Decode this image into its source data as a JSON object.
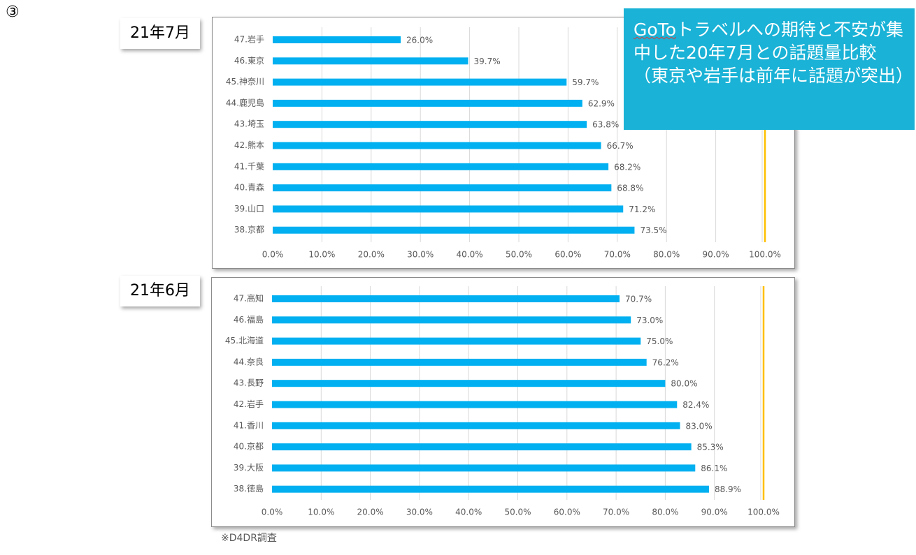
{
  "corner_mark": "③",
  "callout": {
    "prefix": "GoTo",
    "text": "トラベルへの期待と不安が集中した20年7月との話題量比較（東京や岩手は前年に話題が突出）"
  },
  "source_note": "※D4DR調査",
  "colors": {
    "bar": "#00b0f0",
    "reference_line": "#ffc000",
    "gridline": "#d9d9d9",
    "callout_bg": "#1ab2d6"
  },
  "chart_data": [
    {
      "type": "bar",
      "orientation": "horizontal",
      "panel_label": "21年7月",
      "categories": [
        "47.岩手",
        "46.東京",
        "45.神奈川",
        "44.鹿児島",
        "43.埼玉",
        "42.熊本",
        "41.千葉",
        "40.青森",
        "39.山口",
        "38.京都"
      ],
      "values": [
        26.0,
        39.7,
        59.7,
        62.9,
        63.8,
        66.7,
        68.2,
        68.8,
        71.2,
        73.5
      ],
      "value_labels": [
        "26.0%",
        "39.7%",
        "59.7%",
        "62.9%",
        "63.8%",
        "66.7%",
        "68.2%",
        "68.8%",
        "71.2%",
        "73.5%"
      ],
      "xlim": [
        0,
        100
      ],
      "x_ticks": [
        "0.0%",
        "10.0%",
        "20.0%",
        "30.0%",
        "40.0%",
        "50.0%",
        "60.0%",
        "70.0%",
        "80.0%",
        "90.0%",
        "100.0%"
      ],
      "reference_value": 100,
      "grid": true
    },
    {
      "type": "bar",
      "orientation": "horizontal",
      "panel_label": "21年6月",
      "categories": [
        "47.高知",
        "46.福島",
        "45.北海道",
        "44.奈良",
        "43.長野",
        "42.岩手",
        "41.香川",
        "40.京都",
        "39.大阪",
        "38.徳島"
      ],
      "values": [
        70.7,
        73.0,
        75.0,
        76.2,
        80.0,
        82.4,
        83.0,
        85.3,
        86.1,
        88.9
      ],
      "value_labels": [
        "70.7%",
        "73.0%",
        "75.0%",
        "76.2%",
        "80.0%",
        "82.4%",
        "83.0%",
        "85.3%",
        "86.1%",
        "88.9%"
      ],
      "xlim": [
        0,
        100
      ],
      "x_ticks": [
        "0.0%",
        "10.0%",
        "20.0%",
        "30.0%",
        "40.0%",
        "50.0%",
        "60.0%",
        "70.0%",
        "80.0%",
        "90.0%",
        "100.0%"
      ],
      "reference_value": 100,
      "grid": true
    }
  ]
}
